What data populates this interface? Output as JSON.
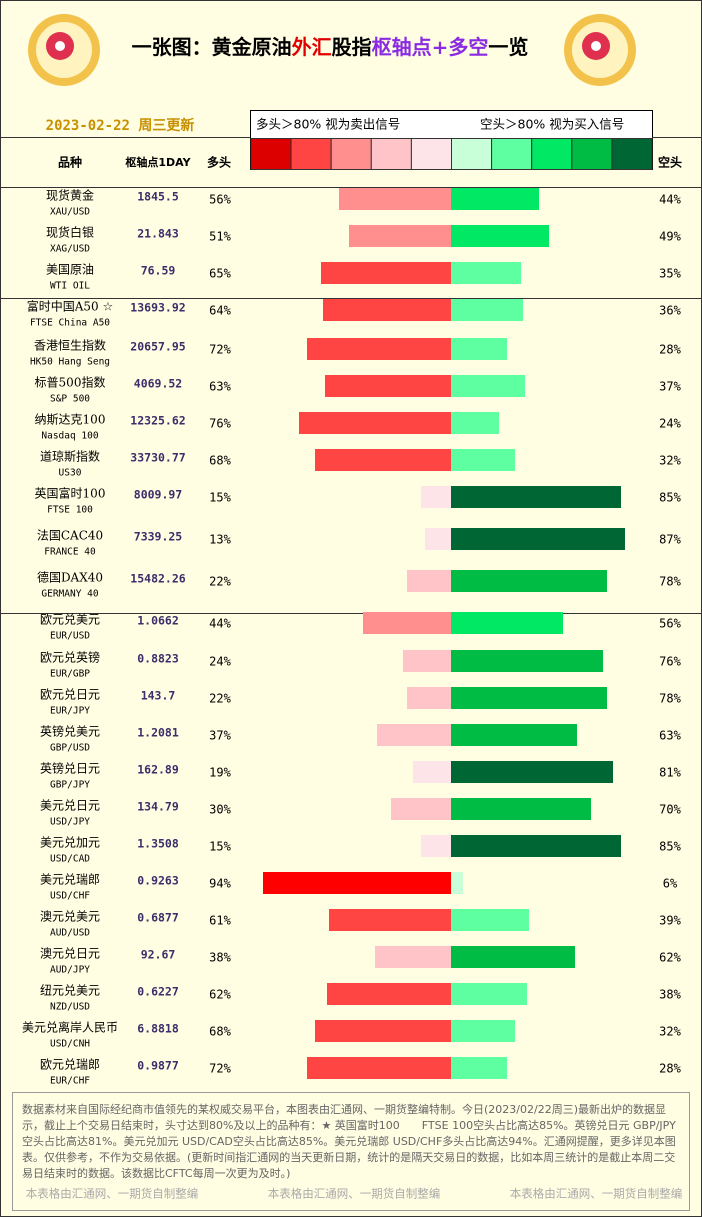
{
  "header": {
    "title_parts": [
      {
        "text": "一张图：黄金原油",
        "color": "#000000"
      },
      {
        "text": "外汇",
        "color": "#e00000"
      },
      {
        "text": "股指",
        "color": "#000000"
      },
      {
        "text": "枢轴点+多空",
        "color": "#8a2be2"
      },
      {
        "text": "一览",
        "color": "#000000"
      }
    ],
    "date": "2023-02-22 周三更新"
  },
  "legend": {
    "long_text": "多头＞80% 视为卖出信号",
    "short_text": "空头＞80% 视为买入信号",
    "colors": [
      "#dd0000",
      "#ff4444",
      "#ff8f8f",
      "#ffc4c8",
      "#fde4e8",
      "#c8ffd8",
      "#5dffa0",
      "#00e864",
      "#00bb44",
      "#006633"
    ]
  },
  "columns": {
    "name": "品种",
    "pivot": "枢轴点1DAY",
    "long": "多头",
    "short": "空头"
  },
  "rows": [
    {
      "name": "现货黄金",
      "sub": "XAU/USD",
      "pivot": "1845.5",
      "long": 56,
      "long_label": "56%",
      "short": 44,
      "short_label": "44%",
      "long_color": "#ff8f8f",
      "short_color": "#00e864"
    },
    {
      "name": "现货白银",
      "sub": "XAG/USD",
      "pivot": "21.843",
      "long": 51,
      "long_label": "51%",
      "short": 49,
      "short_label": "49%",
      "long_color": "#ff8f8f",
      "short_color": "#00e864"
    },
    {
      "name": "美国原油",
      "sub": "WTI OIL",
      "pivot": "76.59",
      "long": 65,
      "long_label": "65%",
      "short": 35,
      "short_label": "35%",
      "long_color": "#ff4444",
      "short_color": "#5dffa0"
    },
    {
      "name": "富时中国A50 ☆",
      "sub": "FTSE China A50",
      "pivot": "13693.92",
      "long": 64,
      "long_label": "64%",
      "short": 36,
      "short_label": "36%",
      "long_color": "#ff4444",
      "short_color": "#5dffa0"
    },
    {
      "name": "香港恒生指数",
      "sub": "HK50 Hang Seng",
      "pivot": "20657.95",
      "long": 72,
      "long_label": "72%",
      "short": 28,
      "short_label": "28%",
      "long_color": "#ff4444",
      "short_color": "#5dffa0"
    },
    {
      "name": "标普500指数",
      "sub": "S&P 500",
      "pivot": "4069.52",
      "long": 63,
      "long_label": "63%",
      "short": 37,
      "short_label": "37%",
      "long_color": "#ff4444",
      "short_color": "#5dffa0"
    },
    {
      "name": "纳斯达克100",
      "sub": "Nasdaq 100",
      "pivot": "12325.62",
      "long": 76,
      "long_label": "76%",
      "short": 24,
      "short_label": "24%",
      "long_color": "#ff4444",
      "short_color": "#5dffa0"
    },
    {
      "name": "道琼斯指数",
      "sub": "US30",
      "pivot": "33730.77",
      "long": 68,
      "long_label": "68%",
      "short": 32,
      "short_label": "32%",
      "long_color": "#ff4444",
      "short_color": "#5dffa0"
    },
    {
      "name": "英国富时100",
      "sub": "FTSE 100",
      "pivot": "8009.97",
      "long": 15,
      "long_label": "15%",
      "short": 85,
      "short_label": "85%",
      "long_color": "#fde4e8",
      "short_color": "#006633"
    },
    {
      "name": "法国CAC40",
      "sub": "FRANCE 40",
      "pivot": "7339.25",
      "long": 13,
      "long_label": "13%",
      "short": 87,
      "short_label": "87%",
      "long_color": "#fde4e8",
      "short_color": "#006633"
    },
    {
      "name": "德国DAX40",
      "sub": "GERMANY 40",
      "pivot": "15482.26",
      "long": 22,
      "long_label": "22%",
      "short": 78,
      "short_label": "78%",
      "long_color": "#ffc4c8",
      "short_color": "#00bb44"
    },
    {
      "name": "欧元兑美元",
      "sub": "EUR/USD",
      "pivot": "1.0662",
      "long": 44,
      "long_label": "44%",
      "short": 56,
      "short_label": "56%",
      "long_color": "#ff8f8f",
      "short_color": "#00e864"
    },
    {
      "name": "欧元兑英镑",
      "sub": "EUR/GBP",
      "pivot": "0.8823",
      "long": 24,
      "long_label": "24%",
      "short": 76,
      "short_label": "76%",
      "long_color": "#ffc4c8",
      "short_color": "#00bb44"
    },
    {
      "name": "欧元兑日元",
      "sub": "EUR/JPY",
      "pivot": "143.7",
      "long": 22,
      "long_label": "22%",
      "short": 78,
      "short_label": "78%",
      "long_color": "#ffc4c8",
      "short_color": "#00bb44"
    },
    {
      "name": "英镑兑美元",
      "sub": "GBP/USD",
      "pivot": "1.2081",
      "long": 37,
      "long_label": "37%",
      "short": 63,
      "short_label": "63%",
      "long_color": "#ffc4c8",
      "short_color": "#00bb44"
    },
    {
      "name": "英镑兑日元",
      "sub": "GBP/JPY",
      "pivot": "162.89",
      "long": 19,
      "long_label": "19%",
      "short": 81,
      "short_label": "81%",
      "long_color": "#fde4e8",
      "short_color": "#006633"
    },
    {
      "name": "美元兑日元",
      "sub": "USD/JPY",
      "pivot": "134.79",
      "long": 30,
      "long_label": "30%",
      "short": 70,
      "short_label": "70%",
      "long_color": "#ffc4c8",
      "short_color": "#00bb44"
    },
    {
      "name": "美元兑加元",
      "sub": "USD/CAD",
      "pivot": "1.3508",
      "long": 15,
      "long_label": "15%",
      "short": 85,
      "short_label": "85%",
      "long_color": "#fde4e8",
      "short_color": "#006633"
    },
    {
      "name": "美元兑瑞郎",
      "sub": "USD/CHF",
      "pivot": "0.9263",
      "long": 94,
      "long_label": "94%",
      "short": 6,
      "short_label": "6%",
      "long_color": "#ff0000",
      "short_color": "#c8ffd8"
    },
    {
      "name": "澳元兑美元",
      "sub": "AUD/USD",
      "pivot": "0.6877",
      "long": 61,
      "long_label": "61%",
      "short": 39,
      "short_label": "39%",
      "long_color": "#ff4444",
      "short_color": "#5dffa0"
    },
    {
      "name": "澳元兑日元",
      "sub": "AUD/JPY",
      "pivot": "92.67",
      "long": 38,
      "long_label": "38%",
      "short": 62,
      "short_label": "62%",
      "long_color": "#ffc4c8",
      "short_color": "#00bb44"
    },
    {
      "name": "纽元兑美元",
      "sub": "NZD/USD",
      "pivot": "0.6227",
      "long": 62,
      "long_label": "62%",
      "short": 38,
      "short_label": "38%",
      "long_color": "#ff4444",
      "short_color": "#5dffa0"
    },
    {
      "name": "美元兑离岸人民币",
      "sub": "USD/CNH",
      "pivot": "6.8818",
      "long": 68,
      "long_label": "68%",
      "short": 32,
      "short_label": "32%",
      "long_color": "#ff4444",
      "short_color": "#5dffa0"
    },
    {
      "name": "欧元兑瑞郎",
      "sub": "EUR/CHF",
      "pivot": "0.9877",
      "long": 72,
      "long_label": "72%",
      "short": 28,
      "short_label": "28%",
      "long_color": "#ff4444",
      "short_color": "#5dffa0"
    }
  ],
  "footer": {
    "text": "数据素材来自国际经纪商市值领先的某权威交易平台，本图表由汇通网、一期货整编特制。今日(2023/02/22周三)最新出炉的数据显示，截止上个交易日结束时，头寸达到80%及以上的品种有：★ 英国富时100　　FTSE 100空头占比高达85%。英镑兑日元 GBP/JPY空头占比高达81%。美元兑加元 USD/CAD空头占比高达85%。美元兑瑞郎 USD/CHF多头占比高达94%。汇通网提醒，更多详见本图表。仅供参考，不作为交易依据。(更新时间指汇通网的当天更新日期，统计的是隔天交易日的数据，比如本周三统计的是截止本周二交易日结束时的数据。该数据比CFTC每周一次更为及时。)",
    "credits": [
      "本表格由汇通网、一期货自制整编",
      "本表格由汇通网、一期货自制整编",
      "本表格由汇通网、一期货自制整编"
    ]
  }
}
